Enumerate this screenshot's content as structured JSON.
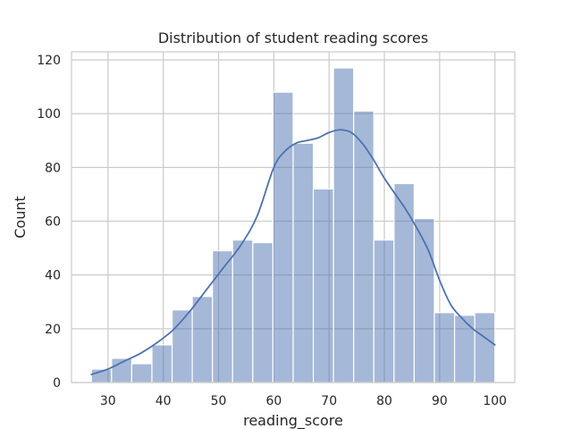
{
  "chart_data": {
    "type": "bar",
    "subtype": "histogram-with-kde",
    "title": "Distribution of student reading scores",
    "xlabel": "reading_score",
    "ylabel": "Count",
    "xlim": [
      23.4,
      103.6
    ],
    "ylim": [
      0,
      123
    ],
    "xticks": [
      30,
      40,
      50,
      60,
      70,
      80,
      90,
      100
    ],
    "yticks": [
      0,
      20,
      40,
      60,
      80,
      100,
      120
    ],
    "grid": true,
    "bar_color": "#4c72b0",
    "line_color": "#4c72b0",
    "bins": [
      {
        "x0": 27.0,
        "x1": 30.65,
        "count": 5
      },
      {
        "x0": 30.65,
        "x1": 34.3,
        "count": 9
      },
      {
        "x0": 34.3,
        "x1": 37.95,
        "count": 7
      },
      {
        "x0": 37.95,
        "x1": 41.6,
        "count": 14
      },
      {
        "x0": 41.6,
        "x1": 45.25,
        "count": 27
      },
      {
        "x0": 45.25,
        "x1": 48.9,
        "count": 32
      },
      {
        "x0": 48.9,
        "x1": 52.55,
        "count": 49
      },
      {
        "x0": 52.55,
        "x1": 56.2,
        "count": 53
      },
      {
        "x0": 56.2,
        "x1": 59.85,
        "count": 52
      },
      {
        "x0": 59.85,
        "x1": 63.5,
        "count": 108
      },
      {
        "x0": 63.5,
        "x1": 67.15,
        "count": 89
      },
      {
        "x0": 67.15,
        "x1": 70.8,
        "count": 72
      },
      {
        "x0": 70.8,
        "x1": 74.45,
        "count": 117
      },
      {
        "x0": 74.45,
        "x1": 78.1,
        "count": 101
      },
      {
        "x0": 78.1,
        "x1": 81.75,
        "count": 53
      },
      {
        "x0": 81.75,
        "x1": 85.4,
        "count": 74
      },
      {
        "x0": 85.4,
        "x1": 89.05,
        "count": 61
      },
      {
        "x0": 89.05,
        "x1": 92.7,
        "count": 26
      },
      {
        "x0": 92.7,
        "x1": 96.35,
        "count": 25
      },
      {
        "x0": 96.35,
        "x1": 100.0,
        "count": 26
      }
    ],
    "kde": {
      "x": [
        27,
        30,
        33,
        36,
        39,
        42,
        45,
        48,
        51,
        54,
        57,
        60,
        62,
        64,
        66,
        68,
        70,
        72,
        74,
        76,
        78,
        80,
        82,
        84,
        86,
        88,
        90,
        92,
        94,
        96,
        98,
        100
      ],
      "y": [
        3,
        5,
        8,
        11,
        15,
        20,
        27,
        35,
        43,
        51,
        62,
        80,
        86,
        89,
        90,
        91,
        93,
        94,
        93,
        89,
        83,
        76,
        70,
        64,
        57,
        49,
        38,
        29,
        24,
        20,
        17,
        14
      ]
    }
  }
}
